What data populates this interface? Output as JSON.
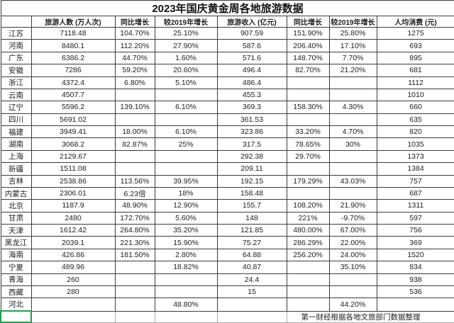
{
  "title": "2023年国庆黄金周各地旅游数据",
  "columns": {
    "province": "",
    "visitors": "旅游人数 (万人次)",
    "yoy_growth_visitors": "同比增长",
    "vs2019_growth_visitors": "较2019年增长",
    "revenue": "旅游收入 (亿元)",
    "yoy_growth_revenue": "同比增长",
    "vs2019_growth_revenue": "较2019年增长",
    "per_capita_spend": "人均消费 (元)"
  },
  "rows": [
    {
      "province": "江苏",
      "values": [
        "7118.48",
        "104.70%",
        "25.10%",
        "907.59",
        "151.90%",
        "25.80%",
        "1275"
      ]
    },
    {
      "province": "河南",
      "values": [
        "8480.1",
        "112.20%",
        "27.90%",
        "587.6",
        "206.40%",
        "17.10%",
        "693"
      ]
    },
    {
      "province": "广东",
      "values": [
        "6386.2",
        "44.70%",
        "1.60%",
        "571.6",
        "148.70%",
        "7.70%",
        "895"
      ]
    },
    {
      "province": "安徽",
      "values": [
        "7286",
        "59.20%",
        "20.60%",
        "496.4",
        "82.70%",
        "21.20%",
        "681"
      ]
    },
    {
      "province": "浙江",
      "values": [
        "4372.4",
        "6.80%",
        "5.10%",
        "486.4",
        "",
        "",
        "1112"
      ]
    },
    {
      "province": "云南",
      "values": [
        "4507.7",
        "",
        "",
        "455.3",
        "",
        "",
        "1010"
      ]
    },
    {
      "province": "辽宁",
      "values": [
        "5596.2",
        "139.10%",
        "6.10%",
        "369.3",
        "158.30%",
        "4.30%",
        "660"
      ]
    },
    {
      "province": "四川",
      "values": [
        "5691.02",
        "",
        "",
        "361.53",
        "",
        "",
        "635"
      ]
    },
    {
      "province": "福建",
      "values": [
        "3949.41",
        "18.00%",
        "6.10%",
        "323.86",
        "33.20%",
        "4.70%",
        "820"
      ]
    },
    {
      "province": "湖南",
      "values": [
        "3068.2",
        "82.87%",
        "25%",
        "317.5",
        "78.65%",
        "30%",
        "1035"
      ]
    },
    {
      "province": "上海",
      "values": [
        "2129.67",
        "",
        "",
        "292.38",
        "29.70%",
        "",
        "1373"
      ]
    },
    {
      "province": "新疆",
      "values": [
        "1511.08",
        "",
        "",
        "209.11",
        "",
        "",
        "1384"
      ]
    },
    {
      "province": "吉林",
      "values": [
        "2538.86",
        "113.56%",
        "39.95%",
        "192.15",
        "179.29%",
        "43.03%",
        "757"
      ]
    },
    {
      "province": "内蒙古",
      "values": [
        "2306.01",
        "6.23倍",
        "18%",
        "158.48",
        "",
        "",
        "687"
      ]
    },
    {
      "province": "北京",
      "values": [
        "1187.9",
        "48.90%",
        "12.90%",
        "155.7",
        "108.20%",
        "21.90%",
        "1311"
      ]
    },
    {
      "province": "甘肃",
      "values": [
        "2480",
        "172.70%",
        "5.60%",
        "148",
        "221%",
        "-9.70%",
        "597"
      ]
    },
    {
      "province": "天津",
      "values": [
        "1612.42",
        "264.80%",
        "35.20%",
        "121.85",
        "480.00%",
        "67.00%",
        "756"
      ]
    },
    {
      "province": "黑龙江",
      "values": [
        "2039.1",
        "221.30%",
        "15.90%",
        "75.27",
        "286.29%",
        "22.00%",
        "369"
      ]
    },
    {
      "province": "海南",
      "values": [
        "426.86",
        "181.50%",
        "2.80%",
        "64.88",
        "256.20%",
        "24.00%",
        "1520"
      ]
    },
    {
      "province": "宁夏",
      "values": [
        "489.96",
        "",
        "18.82%",
        "40.87",
        "",
        "35.10%",
        "834"
      ]
    },
    {
      "province": "青海",
      "values": [
        "260",
        "",
        "",
        "24.4",
        "",
        "",
        "938"
      ]
    },
    {
      "province": "西藏",
      "values": [
        "280",
        "",
        "",
        "15",
        "",
        "",
        "536"
      ]
    },
    {
      "province": "河北",
      "values": [
        "",
        "",
        "48.80%",
        "",
        "",
        "44.20%",
        ""
      ]
    }
  ],
  "footer": {
    "note": "第一财经根据各地文旅部门数据整理"
  },
  "colors": {
    "selection_green": "#18a24b",
    "grid_dark": "#3b3b3b",
    "grid_light": "#a9a9a9",
    "background": "#ffffff",
    "text": "#1c1c1c"
  }
}
